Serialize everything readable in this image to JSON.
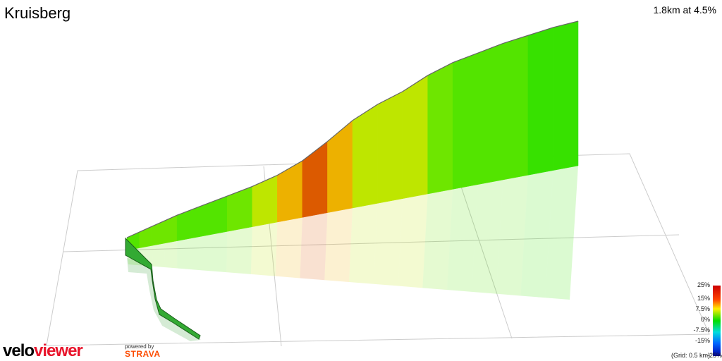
{
  "header": {
    "title": "Kruisberg",
    "stats": "1.8km at 4.5%"
  },
  "legend": {
    "labels": [
      "25%",
      "15%",
      "7.5%",
      "0%",
      "-7.5%",
      "-15%",
      "-25%"
    ],
    "grid_note": "(Grid: 0.5 km)"
  },
  "branding": {
    "logo_part1": "velo",
    "logo_part2": "viewer",
    "powered_by": "powered by",
    "strava": "STRAVA"
  },
  "colors": {
    "steep": "#d43a00",
    "moderate": "#e8e000",
    "gentle": "#66e000",
    "flat": "#00cc00",
    "grid": "#cccccc",
    "logo_red": "#e8142b",
    "strava_orange": "#fc4c02"
  },
  "chart_data": {
    "type": "area",
    "title": "Kruisberg",
    "x_unit": "km",
    "y_unit": "m",
    "distance_km": 1.8,
    "avg_gradient_pct": 4.5,
    "x": [
      0.0,
      0.05,
      0.1,
      0.15,
      0.2,
      0.3,
      0.4,
      0.5,
      0.6,
      0.7,
      0.8,
      0.9,
      1.0,
      1.1,
      1.2,
      1.3,
      1.4,
      1.5,
      1.6,
      1.7,
      1.8
    ],
    "elevation": [
      0,
      2,
      4,
      6,
      8,
      11,
      14,
      17,
      21,
      27,
      36,
      46,
      53,
      58,
      65,
      70,
      73,
      76,
      78,
      80,
      81
    ],
    "gradient_pct": [
      2,
      3,
      4,
      4,
      4,
      3,
      3,
      4,
      6,
      9,
      12,
      9,
      6,
      6,
      6,
      4,
      3,
      3,
      3,
      2,
      2
    ],
    "legend_scale": [
      25,
      15,
      7.5,
      0,
      -7.5,
      -15,
      -25
    ],
    "grid_km": 0.5
  }
}
